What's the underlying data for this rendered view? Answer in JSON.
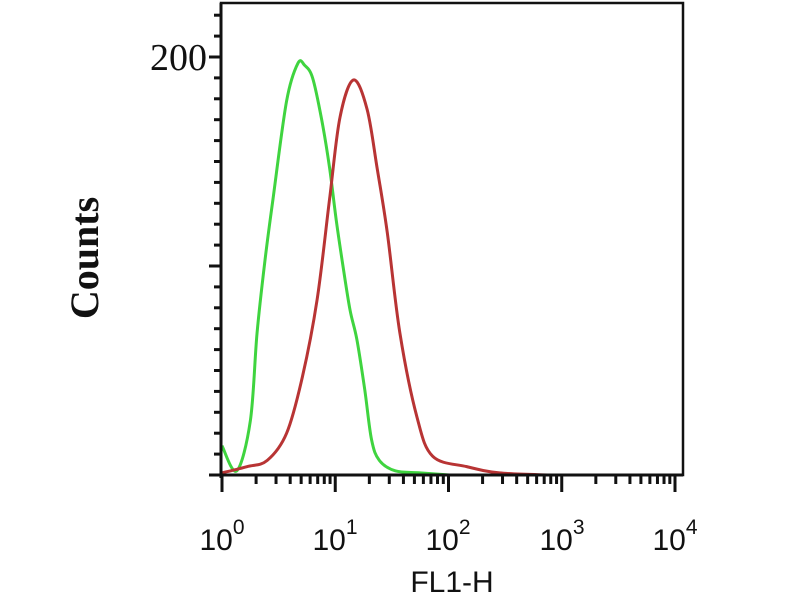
{
  "chart_data": {
    "type": "line",
    "title": "",
    "xlabel": "FL1-H",
    "ylabel": "Counts",
    "x_scale": "log",
    "xlim": [
      1,
      10000
    ],
    "ylim": [
      0,
      200
    ],
    "x_tick_labels": [
      {
        "base": "10",
        "exp": "0"
      },
      {
        "base": "10",
        "exp": "1"
      },
      {
        "base": "10",
        "exp": "2"
      },
      {
        "base": "10",
        "exp": "3"
      },
      {
        "base": "10",
        "exp": "4"
      }
    ],
    "y_tick_labels": [
      "200"
    ],
    "grid": false,
    "legend": "none",
    "series": [
      {
        "color": "#3fd43f",
        "x": [
          1,
          1.35,
          1.78,
          2.04,
          2.4,
          2.82,
          3.72,
          4.68,
          5.37,
          6.31,
          7.59,
          8.91,
          10.2,
          11.7,
          13.5,
          15.5,
          18.2,
          20.9,
          24.5,
          33.9,
          56.2,
          102
        ],
        "y": [
          14,
          2,
          26,
          68,
          103,
          132,
          179,
          197,
          196,
          190,
          170,
          147,
          122,
          100,
          79,
          65,
          41,
          17,
          7,
          2,
          1,
          0
        ]
      },
      {
        "color": "#b83434",
        "x": [
          1,
          1.66,
          2.51,
          3.72,
          5.13,
          6.92,
          8.91,
          11.0,
          14.5,
          19.1,
          23.4,
          28.8,
          37.2,
          52.5,
          72.4,
          145,
          282,
          776
        ],
        "y": [
          1,
          4,
          7,
          20,
          47,
          84,
          132,
          171,
          189,
          175,
          147,
          116,
          68,
          28,
          9,
          4,
          1,
          0
        ]
      }
    ]
  }
}
